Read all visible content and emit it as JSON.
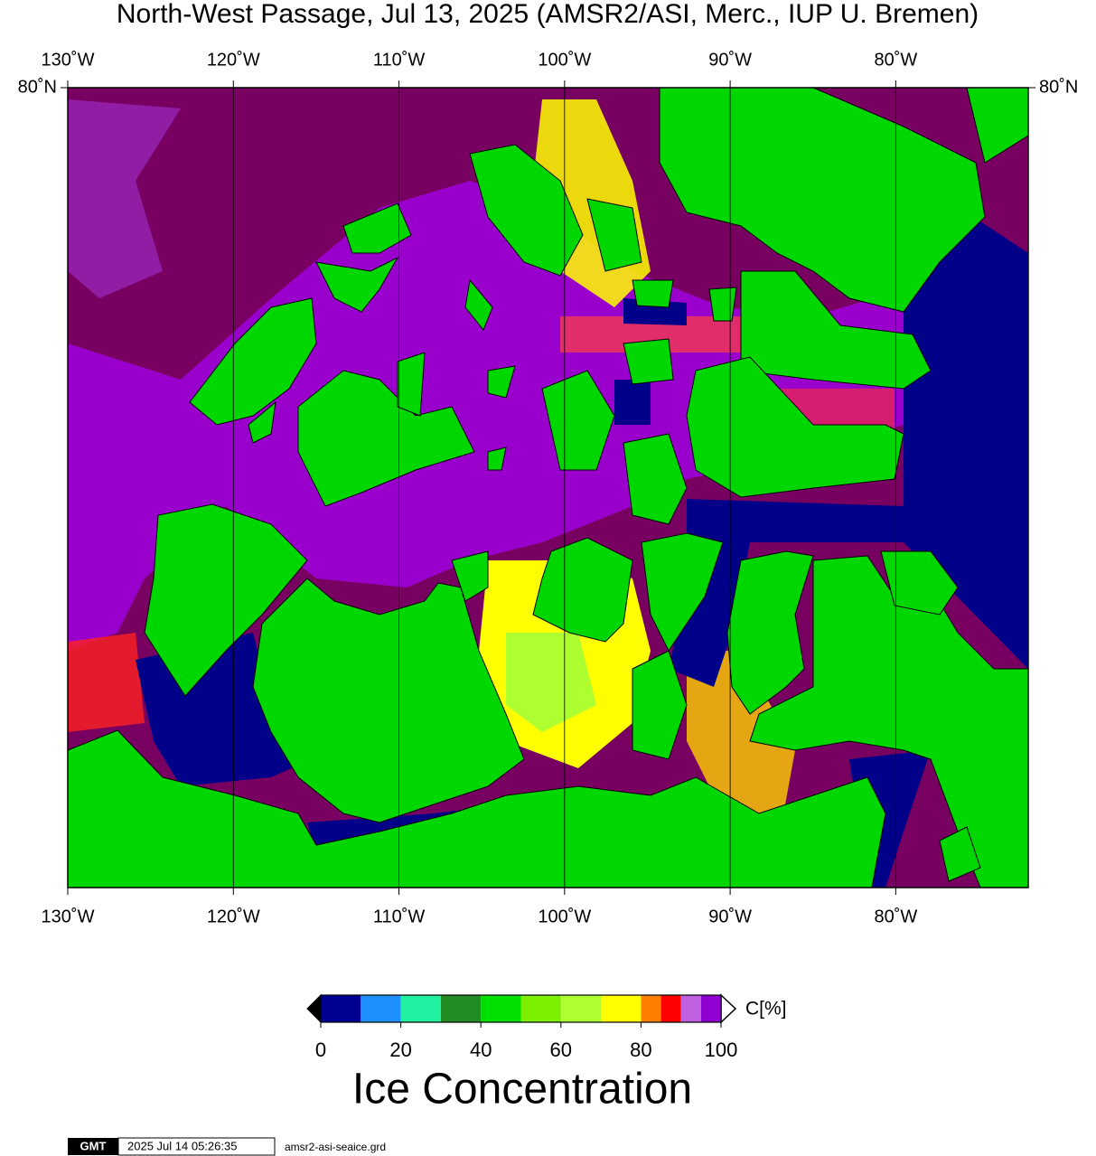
{
  "title": "North-West Passage, Jul 13, 2025 (AMSR2/ASI, Merc., IUP U. Bremen)",
  "map": {
    "lon_range": [
      -130,
      -72
    ],
    "lat_range": [
      67,
      80
    ],
    "lon_ticks": [
      {
        "value": -130,
        "label": "130˚W"
      },
      {
        "value": -120,
        "label": "120˚W"
      },
      {
        "value": -110,
        "label": "110˚W"
      },
      {
        "value": -100,
        "label": "100˚W"
      },
      {
        "value": -90,
        "label": "90˚W"
      },
      {
        "value": -80,
        "label": "80˚W"
      }
    ],
    "lat_ticks": [
      {
        "value": 80,
        "label": "80˚N"
      }
    ]
  },
  "colorbar": {
    "bins": [
      0,
      10,
      20,
      30,
      40,
      50,
      60,
      70,
      80,
      85,
      90,
      95,
      100
    ],
    "colors": [
      "#000090",
      "#1e90ff",
      "#20f0a0",
      "#228b22",
      "#00e000",
      "#7cf000",
      "#adff2f",
      "#ffff00",
      "#ff7f00",
      "#ff0000",
      "#c060e0",
      "#9000d0"
    ],
    "ticks": [
      0,
      20,
      40,
      60,
      80,
      100
    ],
    "unit_label": "C[%]",
    "title": "Ice Concentration"
  },
  "footer": {
    "logo": "GMT",
    "timestamp": "2025 Jul 14 05:26:35",
    "file": "amsr2-asi-seaice.grd"
  }
}
